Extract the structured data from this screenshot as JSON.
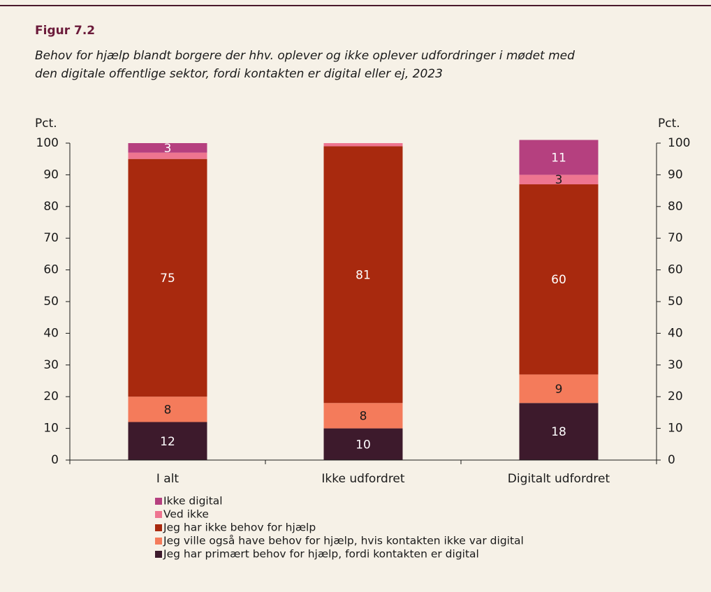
{
  "chart_data": {
    "type": "stacked_bar",
    "title": "Figur 7.2",
    "subtitle": [
      "Behov for hjælp blandt borgere der hhv. oplever og ikke oplever udfordringer i mødet med",
      "den digitale offentlige sektor, fordi kontakten er digital eller ej, 2023"
    ],
    "y_label": "Pct.",
    "y2_label": "Pct.",
    "categories": [
      "I alt",
      "Ikke udfordret",
      "Digitalt udfordret"
    ],
    "series": [
      {
        "name": "Jeg har primært behov for hjælp, fordi kontakten er digital",
        "color": "#3d1a2c",
        "label_color": "#ffffff",
        "values": [
          12,
          10,
          18
        ],
        "value_labels": [
          "12",
          "10",
          "18"
        ]
      },
      {
        "name": "Jeg ville også have behov for hjælp, hvis kontakten ikke var digital",
        "color": "#f47b5b",
        "label_color": "#1a1a1a",
        "values": [
          8,
          8,
          9
        ],
        "value_labels": [
          "8",
          "8",
          "9"
        ]
      },
      {
        "name": "Jeg har ikke behov for hjælp",
        "color": "#a8290e",
        "label_color": "#ffffff",
        "values": [
          75,
          81,
          60
        ],
        "value_labels": [
          "75",
          "81",
          "60"
        ]
      },
      {
        "name": "Ved ikke",
        "color": "#ee7590",
        "label_color": "#1a1a1a",
        "values": [
          2,
          1,
          3
        ],
        "value_labels": [
          null,
          null,
          "3"
        ]
      },
      {
        "name": "Ikke digital",
        "color": "#b5407f",
        "label_color": "#ffffff",
        "values": [
          3,
          0,
          11
        ],
        "value_labels": [
          "3",
          null,
          "11"
        ]
      }
    ],
    "ylim": [
      0,
      100
    ],
    "yticks": [
      0,
      10,
      20,
      30,
      40,
      50,
      60,
      70,
      80,
      90,
      100
    ],
    "y2lim": [
      0,
      100
    ],
    "y2ticks": [
      0,
      10,
      20,
      30,
      40,
      50,
      60,
      70,
      80,
      90,
      100
    ]
  }
}
